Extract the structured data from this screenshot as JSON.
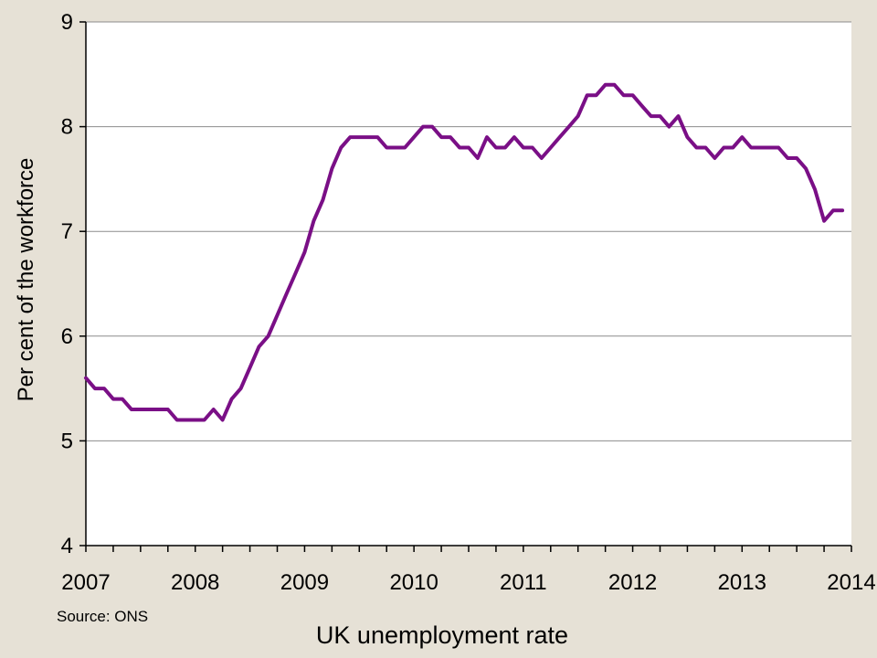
{
  "chart_data": {
    "type": "line",
    "title": "UK unemployment rate",
    "source": "Source: ONS",
    "xlabel": "",
    "ylabel": "Per cent of the workforce",
    "xlim": [
      2007.0,
      2014.0
    ],
    "ylim": [
      4,
      9
    ],
    "y_ticks": [
      4,
      5,
      6,
      7,
      8,
      9
    ],
    "x_tick_labels": [
      "2007",
      "2008",
      "2009",
      "2010",
      "2011",
      "2012",
      "2013",
      "2014"
    ],
    "grid": "horizontal",
    "line_color": "#7a0f86",
    "series": [
      {
        "x": [
          2007.0,
          2007.083,
          2007.167,
          2007.25,
          2007.333,
          2007.417,
          2007.5,
          2007.583,
          2007.667,
          2007.75,
          2007.833,
          2007.917,
          2008.0,
          2008.083,
          2008.167,
          2008.25,
          2008.333,
          2008.417,
          2008.5,
          2008.583,
          2008.667,
          2008.75,
          2008.833,
          2008.917,
          2009.0,
          2009.083,
          2009.167,
          2009.25,
          2009.333,
          2009.417,
          2009.5,
          2009.583,
          2009.667,
          2009.75,
          2009.833,
          2009.917,
          2010.0,
          2010.083,
          2010.167,
          2010.25,
          2010.333,
          2010.417,
          2010.5,
          2010.583,
          2010.667,
          2010.75,
          2010.833,
          2010.917,
          2011.0,
          2011.083,
          2011.167,
          2011.25,
          2011.333,
          2011.417,
          2011.5,
          2011.583,
          2011.667,
          2011.75,
          2011.833,
          2011.917,
          2012.0,
          2012.083,
          2012.167,
          2012.25,
          2012.333,
          2012.417,
          2012.5,
          2012.583,
          2012.667,
          2012.75,
          2012.833,
          2012.917,
          2013.0,
          2013.083,
          2013.167,
          2013.25,
          2013.333,
          2013.417,
          2013.5,
          2013.583,
          2013.667,
          2013.75,
          2013.833,
          2013.917
        ],
        "values": [
          5.6,
          5.5,
          5.5,
          5.4,
          5.4,
          5.3,
          5.3,
          5.3,
          5.3,
          5.3,
          5.2,
          5.2,
          5.2,
          5.2,
          5.3,
          5.2,
          5.4,
          5.5,
          5.7,
          5.9,
          6.0,
          6.2,
          6.4,
          6.6,
          6.8,
          7.1,
          7.3,
          7.6,
          7.8,
          7.9,
          7.9,
          7.9,
          7.9,
          7.8,
          7.8,
          7.8,
          7.9,
          8.0,
          8.0,
          7.9,
          7.9,
          7.8,
          7.8,
          7.7,
          7.9,
          7.8,
          7.8,
          7.9,
          7.8,
          7.8,
          7.7,
          7.8,
          7.9,
          8.0,
          8.1,
          8.3,
          8.3,
          8.4,
          8.4,
          8.3,
          8.3,
          8.2,
          8.1,
          8.1,
          8.0,
          8.1,
          7.9,
          7.8,
          7.8,
          7.7,
          7.8,
          7.8,
          7.9,
          7.8,
          7.8,
          7.8,
          7.8,
          7.7,
          7.7,
          7.6,
          7.4,
          7.1,
          7.2,
          7.2
        ]
      }
    ]
  }
}
